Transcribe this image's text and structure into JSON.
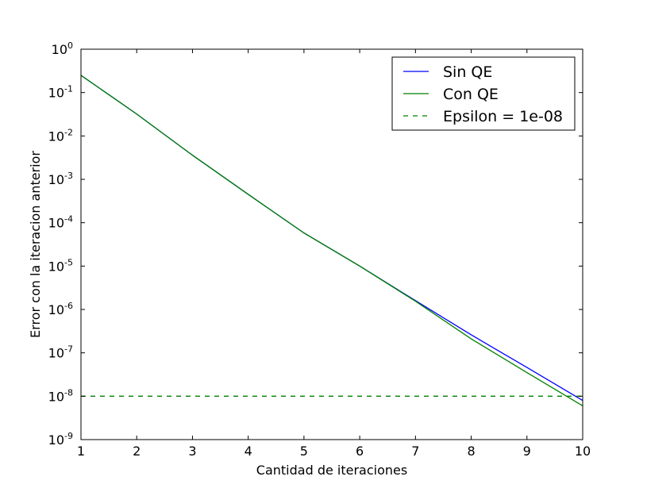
{
  "chart_data": {
    "type": "line",
    "title": "",
    "xlabel": "Cantidad de iteraciones",
    "ylabel": "Error con la iteracion anterior",
    "xlim": [
      1,
      10
    ],
    "ylim": [
      1e-09,
      1
    ],
    "yscale": "log",
    "grid": false,
    "legend_position": "top-right",
    "x_ticks": [
      1,
      2,
      3,
      4,
      5,
      6,
      7,
      8,
      9,
      10
    ],
    "y_ticks": [
      {
        "value": 1e-09,
        "base": "10",
        "exp": "-9"
      },
      {
        "value": 1e-08,
        "base": "10",
        "exp": "-8"
      },
      {
        "value": 1e-07,
        "base": "10",
        "exp": "-7"
      },
      {
        "value": 1e-06,
        "base": "10",
        "exp": "-6"
      },
      {
        "value": 1e-05,
        "base": "10",
        "exp": "-5"
      },
      {
        "value": 0.0001,
        "base": "10",
        "exp": "-4"
      },
      {
        "value": 0.001,
        "base": "10",
        "exp": "-3"
      },
      {
        "value": 0.01,
        "base": "10",
        "exp": "-2"
      },
      {
        "value": 0.1,
        "base": "10",
        "exp": "-1"
      },
      {
        "value": 1,
        "base": "10",
        "exp": "0"
      }
    ],
    "x": [
      1,
      2,
      3,
      4,
      5,
      6,
      7,
      8,
      9,
      10
    ],
    "series": [
      {
        "name": "Sin QE",
        "color": "#0000ff",
        "style": "solid",
        "values": [
          0.25,
          0.032,
          0.0036,
          0.00045,
          5.8e-05,
          1e-05,
          1.6e-06,
          2.6e-07,
          4.6e-08,
          8e-09
        ]
      },
      {
        "name": "Con QE",
        "color": "#008000",
        "style": "solid",
        "values": [
          0.25,
          0.032,
          0.0036,
          0.00045,
          5.8e-05,
          1e-05,
          1.55e-06,
          2.1e-07,
          3.5e-08,
          6e-09
        ]
      },
      {
        "name": "Epsilon = 1e-08",
        "color": "#008000",
        "style": "dashed",
        "values": [
          1e-08,
          1e-08,
          1e-08,
          1e-08,
          1e-08,
          1e-08,
          1e-08,
          1e-08,
          1e-08,
          1e-08
        ]
      }
    ]
  }
}
